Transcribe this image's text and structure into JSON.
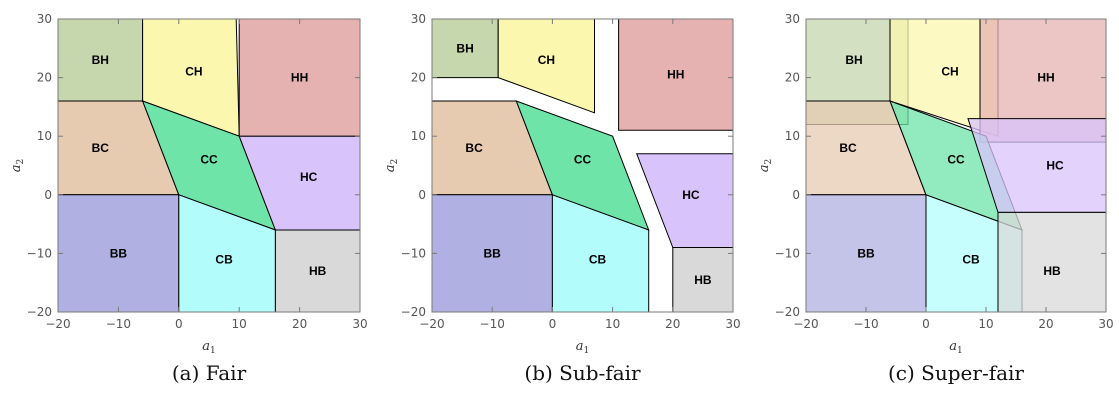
{
  "axes": {
    "x_range": [
      -20,
      30
    ],
    "y_range": [
      -20,
      30
    ],
    "x_ticks": [
      -20,
      -10,
      0,
      10,
      20,
      30
    ],
    "y_ticks": [
      -20,
      -10,
      0,
      10,
      20,
      30
    ],
    "x_label": "a",
    "x_label_sub": "1",
    "y_label": "a",
    "y_label_sub": "2"
  },
  "colors": {
    "BH": "#c6d6ad",
    "CH": "#fbf7ae",
    "HH": "#e5b1b1",
    "BC": "#e6cbb0",
    "CC": "#6ee4a8",
    "HC": "#d8c3fb",
    "BB": "#b0b0e2",
    "CB": "#b3fcfc",
    "HB": "#d9d9d9"
  },
  "panels": [
    {
      "caption": "(a) Fair",
      "regions": [
        {
          "id": "BH",
          "label": "BH",
          "poly": [
            [
              -20,
              30
            ],
            [
              -6,
              30
            ],
            [
              -6,
              16
            ],
            [
              -20,
              16
            ]
          ],
          "label_at": [
            -13,
            23
          ]
        },
        {
          "id": "CH",
          "label": "CH",
          "poly": [
            [
              -6,
              30
            ],
            [
              9.5,
              30
            ],
            [
              10,
              10
            ],
            [
              -6,
              16
            ]
          ],
          "label_at": [
            2.5,
            21
          ]
        },
        {
          "id": "HH",
          "label": "HH",
          "poly": [
            [
              10,
              30
            ],
            [
              30,
              30
            ],
            [
              30,
              10
            ],
            [
              10,
              10
            ]
          ],
          "label_at": [
            20,
            20
          ]
        },
        {
          "id": "BC",
          "label": "BC",
          "poly": [
            [
              -20,
              16
            ],
            [
              -6,
              16
            ],
            [
              0,
              0
            ],
            [
              -20,
              0
            ]
          ],
          "label_at": [
            -13,
            8
          ]
        },
        {
          "id": "CC",
          "label": "CC",
          "poly": [
            [
              -6,
              16
            ],
            [
              10,
              10
            ],
            [
              16,
              -6
            ],
            [
              0,
              0
            ]
          ],
          "label_at": [
            5,
            6
          ]
        },
        {
          "id": "HC",
          "label": "HC",
          "poly": [
            [
              10,
              10
            ],
            [
              30,
              10
            ],
            [
              30,
              -6
            ],
            [
              16,
              -6
            ]
          ],
          "label_at": [
            21.5,
            3
          ]
        },
        {
          "id": "BB",
          "label": "BB",
          "poly": [
            [
              -20,
              0
            ],
            [
              0,
              0
            ],
            [
              0,
              -20
            ],
            [
              -20,
              -20
            ]
          ],
          "label_at": [
            -10,
            -10
          ]
        },
        {
          "id": "CB",
          "label": "CB",
          "poly": [
            [
              0,
              0
            ],
            [
              16,
              -6
            ],
            [
              16,
              -20
            ],
            [
              0,
              -20
            ]
          ],
          "label_at": [
            7.5,
            -11
          ]
        },
        {
          "id": "HB",
          "label": "HB",
          "poly": [
            [
              16,
              -6
            ],
            [
              30,
              -6
            ],
            [
              30,
              -20
            ],
            [
              16,
              -20
            ]
          ],
          "label_at": [
            23,
            -13
          ]
        }
      ]
    },
    {
      "caption": "(b) Sub-fair",
      "regions": [
        {
          "id": "BH",
          "label": "BH",
          "poly": [
            [
              -20,
              30
            ],
            [
              -9,
              30
            ],
            [
              -9,
              20
            ],
            [
              -20,
              20
            ]
          ],
          "label_at": [
            -14.5,
            25
          ]
        },
        {
          "id": "CH",
          "label": "CH",
          "poly": [
            [
              -9,
              30
            ],
            [
              7,
              30
            ],
            [
              7,
              14
            ],
            [
              -9,
              20
            ]
          ],
          "label_at": [
            -1,
            23
          ]
        },
        {
          "id": "HH",
          "label": "HH",
          "poly": [
            [
              11,
              30
            ],
            [
              30,
              30
            ],
            [
              30,
              11
            ],
            [
              11,
              11
            ]
          ],
          "label_at": [
            20.5,
            20.5
          ]
        },
        {
          "id": "BC",
          "label": "BC",
          "poly": [
            [
              -20,
              16
            ],
            [
              -6,
              16
            ],
            [
              0,
              0
            ],
            [
              -20,
              0
            ]
          ],
          "label_at": [
            -13,
            8
          ]
        },
        {
          "id": "CC",
          "label": "CC",
          "poly": [
            [
              -6,
              16
            ],
            [
              10,
              10
            ],
            [
              16,
              -6
            ],
            [
              0,
              0
            ]
          ],
          "label_at": [
            5,
            6
          ]
        },
        {
          "id": "HC",
          "label": "HC",
          "poly": [
            [
              14,
              7
            ],
            [
              30,
              7
            ],
            [
              30,
              -9
            ],
            [
              20,
              -9
            ]
          ],
          "label_at": [
            23,
            0
          ]
        },
        {
          "id": "BB",
          "label": "BB",
          "poly": [
            [
              -20,
              0
            ],
            [
              0,
              0
            ],
            [
              0,
              -20
            ],
            [
              -20,
              -20
            ]
          ],
          "label_at": [
            -10,
            -10
          ]
        },
        {
          "id": "CB",
          "label": "CB",
          "poly": [
            [
              0,
              0
            ],
            [
              16,
              -6
            ],
            [
              16,
              -20
            ],
            [
              0,
              -20
            ]
          ],
          "label_at": [
            7.5,
            -11
          ]
        },
        {
          "id": "HB",
          "label": "HB",
          "poly": [
            [
              20,
              -9
            ],
            [
              30,
              -9
            ],
            [
              30,
              -20
            ],
            [
              20,
              -20
            ]
          ],
          "label_at": [
            25,
            -14.5
          ]
        }
      ]
    },
    {
      "caption": "(c) Super-fair",
      "regions": [
        {
          "id": "BH",
          "label": "BH",
          "poly": [
            [
              -20,
              30
            ],
            [
              -3,
              30
            ],
            [
              -3,
              12
            ],
            [
              -20,
              12
            ]
          ],
          "label_at": [
            -12,
            23
          ]
        },
        {
          "id": "CH",
          "label": "CH",
          "poly": [
            [
              -6,
              30
            ],
            [
              12,
              30
            ],
            [
              12,
              10
            ],
            [
              -6,
              16
            ]
          ],
          "label_at": [
            4,
            21
          ]
        },
        {
          "id": "HH",
          "label": "HH",
          "poly": [
            [
              9,
              30
            ],
            [
              30,
              30
            ],
            [
              30,
              9
            ],
            [
              9,
              9
            ]
          ],
          "label_at": [
            20,
            20
          ]
        },
        {
          "id": "BC",
          "label": "BC",
          "poly": [
            [
              -20,
              16
            ],
            [
              -6,
              16
            ],
            [
              0,
              0
            ],
            [
              -20,
              0
            ]
          ],
          "label_at": [
            -13,
            8
          ]
        },
        {
          "id": "CC",
          "label": "CC",
          "poly": [
            [
              -6,
              16
            ],
            [
              10,
              10
            ],
            [
              16,
              -6
            ],
            [
              0,
              0
            ]
          ],
          "label_at": [
            5,
            6
          ]
        },
        {
          "id": "HC",
          "label": "HC",
          "poly": [
            [
              7,
              13
            ],
            [
              30,
              13
            ],
            [
              30,
              -3
            ],
            [
              12,
              -3
            ]
          ],
          "label_at": [
            21.5,
            5
          ]
        },
        {
          "id": "BB",
          "label": "BB",
          "poly": [
            [
              -20,
              0
            ],
            [
              0,
              0
            ],
            [
              0,
              -20
            ],
            [
              -20,
              -20
            ]
          ],
          "label_at": [
            -10,
            -10
          ]
        },
        {
          "id": "CB",
          "label": "CB",
          "poly": [
            [
              0,
              0
            ],
            [
              16,
              -6
            ],
            [
              16,
              -20
            ],
            [
              0,
              -20
            ]
          ],
          "label_at": [
            7.5,
            -11
          ]
        },
        {
          "id": "HB",
          "label": "HB",
          "poly": [
            [
              12,
              -3
            ],
            [
              30,
              -3
            ],
            [
              30,
              -20
            ],
            [
              12,
              -20
            ]
          ],
          "label_at": [
            21,
            -13
          ]
        }
      ]
    }
  ]
}
